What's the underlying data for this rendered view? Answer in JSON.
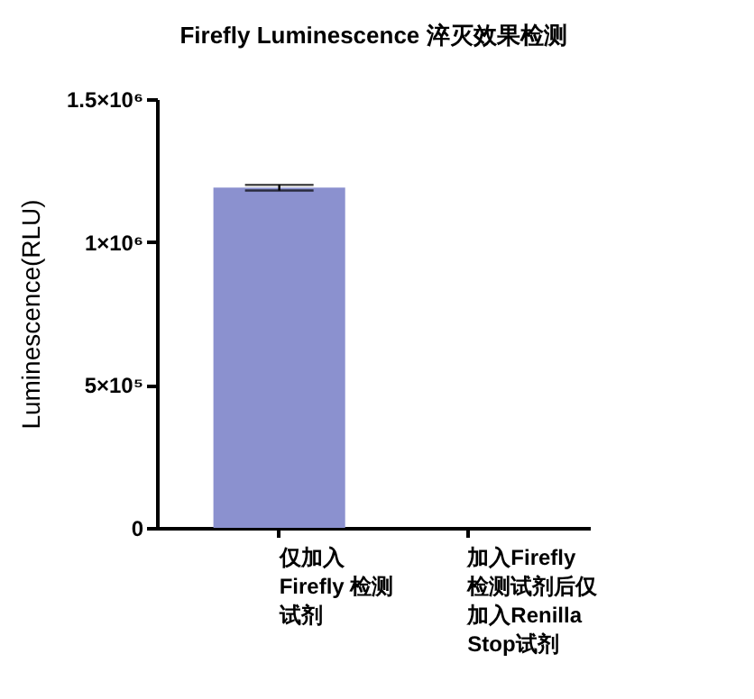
{
  "chart_data": {
    "type": "bar",
    "title": "Firefly Luminescence 淬灭效果检测",
    "ylabel": "Luminescence(RLU)",
    "categories": [
      "仅加入Firefly 检测试剂",
      "加入Firefly检测试剂后仅加入Renilla Stop试剂"
    ],
    "values": [
      1190000,
      0
    ],
    "errors": [
      10000,
      null
    ],
    "color": "#8b91cf",
    "ylim": [
      0,
      1500000
    ],
    "yticks": [
      0,
      {
        "value": 500000,
        "label": "5×10⁵"
      },
      {
        "value": 1000000,
        "label": "1×10⁶"
      },
      {
        "value": 1500000,
        "label": "1.5×10⁶"
      }
    ],
    "grid": false
  }
}
